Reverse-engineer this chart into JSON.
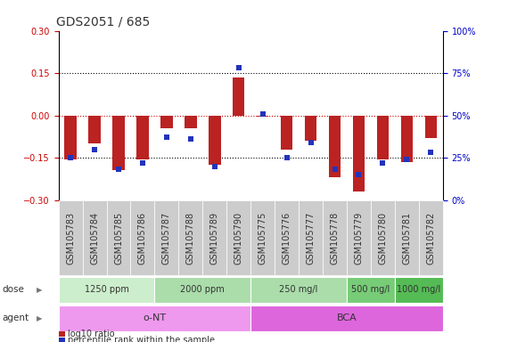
{
  "title": "GDS2051 / 685",
  "samples": [
    "GSM105783",
    "GSM105784",
    "GSM105785",
    "GSM105786",
    "GSM105787",
    "GSM105788",
    "GSM105789",
    "GSM105790",
    "GSM105775",
    "GSM105776",
    "GSM105777",
    "GSM105778",
    "GSM105779",
    "GSM105780",
    "GSM105781",
    "GSM105782"
  ],
  "log10_ratio": [
    -0.155,
    -0.1,
    -0.195,
    -0.155,
    -0.045,
    -0.045,
    -0.175,
    0.135,
    -0.005,
    -0.12,
    -0.09,
    -0.22,
    -0.27,
    -0.155,
    -0.165,
    -0.08
  ],
  "percentile_rank": [
    25,
    30,
    18,
    22,
    37,
    36,
    20,
    78,
    51,
    25,
    34,
    18,
    15,
    22,
    24,
    28
  ],
  "dose_groups": [
    {
      "label": "1250 ppm",
      "start": 0,
      "end": 4,
      "color": "#cceecc"
    },
    {
      "label": "2000 ppm",
      "start": 4,
      "end": 8,
      "color": "#aaddaa"
    },
    {
      "label": "250 mg/l",
      "start": 8,
      "end": 12,
      "color": "#aaddaa"
    },
    {
      "label": "500 mg/l",
      "start": 12,
      "end": 14,
      "color": "#77cc77"
    },
    {
      "label": "1000 mg/l",
      "start": 14,
      "end": 16,
      "color": "#55bb55"
    }
  ],
  "agent_groups": [
    {
      "label": "o-NT",
      "start": 0,
      "end": 8,
      "color": "#ee99ee"
    },
    {
      "label": "BCA",
      "start": 8,
      "end": 16,
      "color": "#dd66dd"
    }
  ],
  "bar_color": "#bb2222",
  "dot_color": "#2233bb",
  "ylim": [
    -0.3,
    0.3
  ],
  "y2lim": [
    0,
    100
  ],
  "yticks": [
    -0.3,
    -0.15,
    0.0,
    0.15,
    0.3
  ],
  "y2ticks": [
    0,
    25,
    50,
    75,
    100
  ],
  "y2tick_labels": [
    "0%",
    "25%",
    "50%",
    "75%",
    "100%"
  ],
  "hlines": [
    0.15,
    0.0,
    -0.15
  ],
  "hline_colors": [
    "black",
    "#cc0000",
    "black"
  ],
  "hline_styles": [
    "dotted",
    "dotted",
    "dotted"
  ],
  "ylabel_left_color": "#cc0000",
  "ylabel_right_color": "#0000cc",
  "title_fontsize": 10,
  "tick_fontsize": 7,
  "bar_width": 0.5,
  "dot_size": 22,
  "legend_items": [
    {
      "color": "#bb2222",
      "label": "log10 ratio"
    },
    {
      "color": "#2233bb",
      "label": "percentile rank within the sample"
    }
  ],
  "dose_label": "dose",
  "agent_label": "agent",
  "xlabel_bg": "#cccccc",
  "plot_bg": "#ffffff"
}
